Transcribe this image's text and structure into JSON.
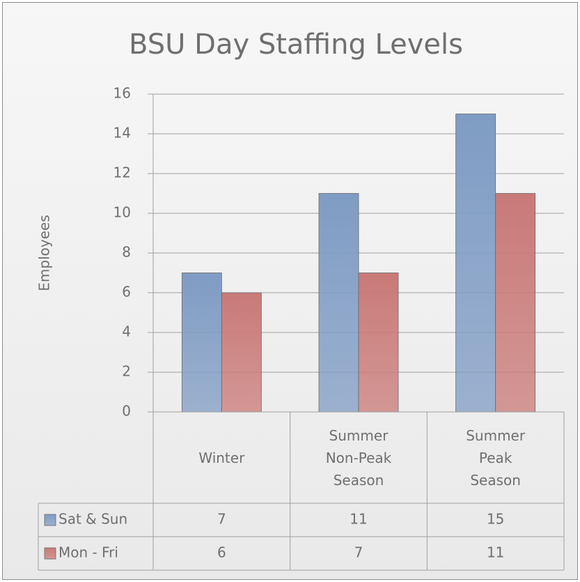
{
  "chart_data": {
    "type": "bar",
    "title": "BSU Day Staffing Levels",
    "y_label": "Employees",
    "categories": [
      "Winter",
      "Summer Non-Peak Season",
      "Summer Peak Season"
    ],
    "series": [
      {
        "name": "Sat & Sun",
        "color": "#7f9cc4",
        "values": [
          7,
          11,
          15
        ]
      },
      {
        "name": "Mon - Fri",
        "color": "#c97a78",
        "values": [
          6,
          7,
          11
        ]
      }
    ],
    "ylim": [
      0,
      16
    ],
    "yticks": [
      0,
      2,
      4,
      6,
      8,
      10,
      12,
      14,
      16
    ],
    "grid": true,
    "data_table": true
  }
}
